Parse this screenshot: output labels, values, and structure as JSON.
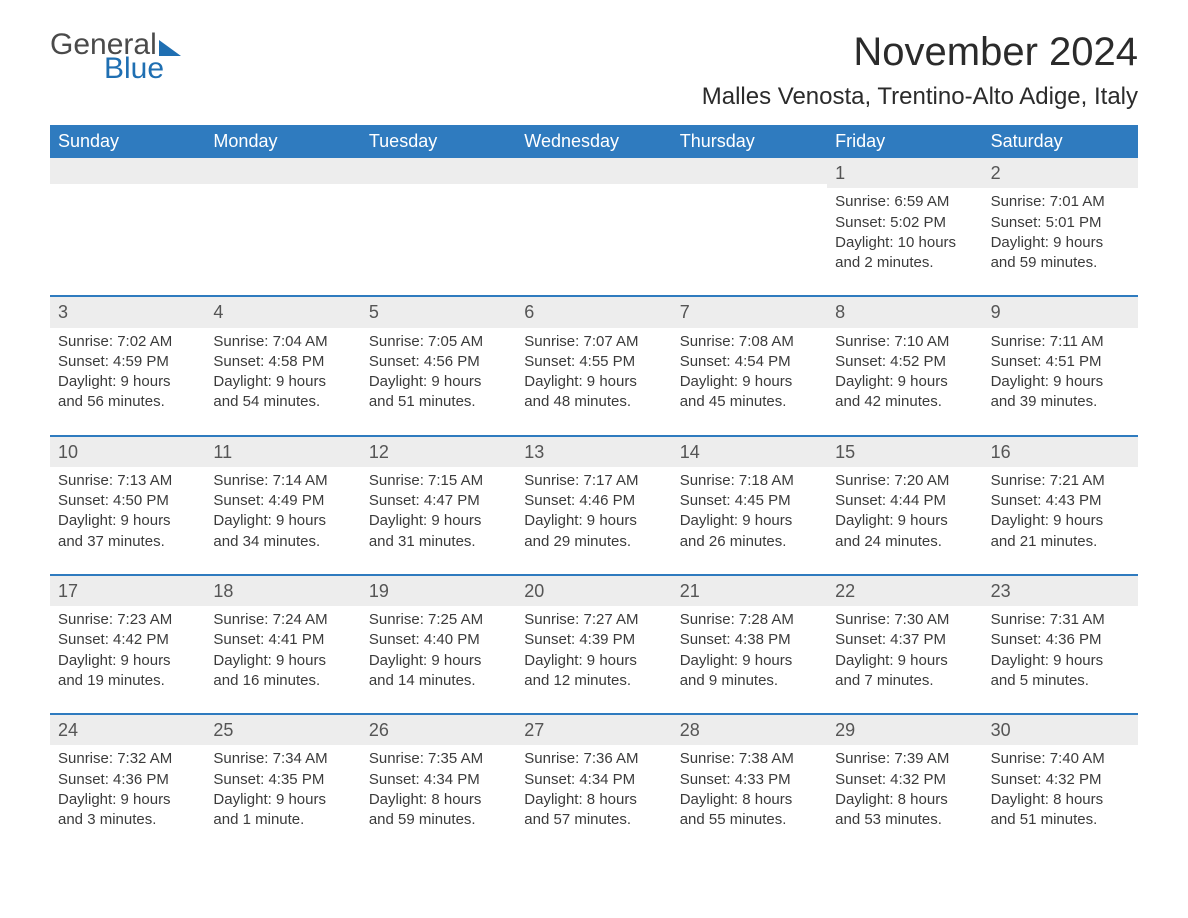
{
  "logo": {
    "text1": "General",
    "text2": "Blue"
  },
  "title": "November 2024",
  "location": "Malles Venosta, Trentino-Alto Adige, Italy",
  "colors": {
    "header_bg": "#2f7bbf",
    "header_text": "#ffffff",
    "daynum_bg": "#ededed",
    "week_border": "#2f7bbf",
    "body_text": "#3b3b3b",
    "logo_blue": "#1f6fb2",
    "background": "#ffffff"
  },
  "typography": {
    "title_fontsize": 40,
    "location_fontsize": 24,
    "dow_fontsize": 18,
    "daynum_fontsize": 18,
    "body_fontsize": 15
  },
  "days_of_week": [
    "Sunday",
    "Monday",
    "Tuesday",
    "Wednesday",
    "Thursday",
    "Friday",
    "Saturday"
  ],
  "weeks": [
    [
      {
        "n": "",
        "sunrise": "",
        "sunset": "",
        "daylight": ""
      },
      {
        "n": "",
        "sunrise": "",
        "sunset": "",
        "daylight": ""
      },
      {
        "n": "",
        "sunrise": "",
        "sunset": "",
        "daylight": ""
      },
      {
        "n": "",
        "sunrise": "",
        "sunset": "",
        "daylight": ""
      },
      {
        "n": "",
        "sunrise": "",
        "sunset": "",
        "daylight": ""
      },
      {
        "n": "1",
        "sunrise": "Sunrise: 6:59 AM",
        "sunset": "Sunset: 5:02 PM",
        "daylight": "Daylight: 10 hours and 2 minutes."
      },
      {
        "n": "2",
        "sunrise": "Sunrise: 7:01 AM",
        "sunset": "Sunset: 5:01 PM",
        "daylight": "Daylight: 9 hours and 59 minutes."
      }
    ],
    [
      {
        "n": "3",
        "sunrise": "Sunrise: 7:02 AM",
        "sunset": "Sunset: 4:59 PM",
        "daylight": "Daylight: 9 hours and 56 minutes."
      },
      {
        "n": "4",
        "sunrise": "Sunrise: 7:04 AM",
        "sunset": "Sunset: 4:58 PM",
        "daylight": "Daylight: 9 hours and 54 minutes."
      },
      {
        "n": "5",
        "sunrise": "Sunrise: 7:05 AM",
        "sunset": "Sunset: 4:56 PM",
        "daylight": "Daylight: 9 hours and 51 minutes."
      },
      {
        "n": "6",
        "sunrise": "Sunrise: 7:07 AM",
        "sunset": "Sunset: 4:55 PM",
        "daylight": "Daylight: 9 hours and 48 minutes."
      },
      {
        "n": "7",
        "sunrise": "Sunrise: 7:08 AM",
        "sunset": "Sunset: 4:54 PM",
        "daylight": "Daylight: 9 hours and 45 minutes."
      },
      {
        "n": "8",
        "sunrise": "Sunrise: 7:10 AM",
        "sunset": "Sunset: 4:52 PM",
        "daylight": "Daylight: 9 hours and 42 minutes."
      },
      {
        "n": "9",
        "sunrise": "Sunrise: 7:11 AM",
        "sunset": "Sunset: 4:51 PM",
        "daylight": "Daylight: 9 hours and 39 minutes."
      }
    ],
    [
      {
        "n": "10",
        "sunrise": "Sunrise: 7:13 AM",
        "sunset": "Sunset: 4:50 PM",
        "daylight": "Daylight: 9 hours and 37 minutes."
      },
      {
        "n": "11",
        "sunrise": "Sunrise: 7:14 AM",
        "sunset": "Sunset: 4:49 PM",
        "daylight": "Daylight: 9 hours and 34 minutes."
      },
      {
        "n": "12",
        "sunrise": "Sunrise: 7:15 AM",
        "sunset": "Sunset: 4:47 PM",
        "daylight": "Daylight: 9 hours and 31 minutes."
      },
      {
        "n": "13",
        "sunrise": "Sunrise: 7:17 AM",
        "sunset": "Sunset: 4:46 PM",
        "daylight": "Daylight: 9 hours and 29 minutes."
      },
      {
        "n": "14",
        "sunrise": "Sunrise: 7:18 AM",
        "sunset": "Sunset: 4:45 PM",
        "daylight": "Daylight: 9 hours and 26 minutes."
      },
      {
        "n": "15",
        "sunrise": "Sunrise: 7:20 AM",
        "sunset": "Sunset: 4:44 PM",
        "daylight": "Daylight: 9 hours and 24 minutes."
      },
      {
        "n": "16",
        "sunrise": "Sunrise: 7:21 AM",
        "sunset": "Sunset: 4:43 PM",
        "daylight": "Daylight: 9 hours and 21 minutes."
      }
    ],
    [
      {
        "n": "17",
        "sunrise": "Sunrise: 7:23 AM",
        "sunset": "Sunset: 4:42 PM",
        "daylight": "Daylight: 9 hours and 19 minutes."
      },
      {
        "n": "18",
        "sunrise": "Sunrise: 7:24 AM",
        "sunset": "Sunset: 4:41 PM",
        "daylight": "Daylight: 9 hours and 16 minutes."
      },
      {
        "n": "19",
        "sunrise": "Sunrise: 7:25 AM",
        "sunset": "Sunset: 4:40 PM",
        "daylight": "Daylight: 9 hours and 14 minutes."
      },
      {
        "n": "20",
        "sunrise": "Sunrise: 7:27 AM",
        "sunset": "Sunset: 4:39 PM",
        "daylight": "Daylight: 9 hours and 12 minutes."
      },
      {
        "n": "21",
        "sunrise": "Sunrise: 7:28 AM",
        "sunset": "Sunset: 4:38 PM",
        "daylight": "Daylight: 9 hours and 9 minutes."
      },
      {
        "n": "22",
        "sunrise": "Sunrise: 7:30 AM",
        "sunset": "Sunset: 4:37 PM",
        "daylight": "Daylight: 9 hours and 7 minutes."
      },
      {
        "n": "23",
        "sunrise": "Sunrise: 7:31 AM",
        "sunset": "Sunset: 4:36 PM",
        "daylight": "Daylight: 9 hours and 5 minutes."
      }
    ],
    [
      {
        "n": "24",
        "sunrise": "Sunrise: 7:32 AM",
        "sunset": "Sunset: 4:36 PM",
        "daylight": "Daylight: 9 hours and 3 minutes."
      },
      {
        "n": "25",
        "sunrise": "Sunrise: 7:34 AM",
        "sunset": "Sunset: 4:35 PM",
        "daylight": "Daylight: 9 hours and 1 minute."
      },
      {
        "n": "26",
        "sunrise": "Sunrise: 7:35 AM",
        "sunset": "Sunset: 4:34 PM",
        "daylight": "Daylight: 8 hours and 59 minutes."
      },
      {
        "n": "27",
        "sunrise": "Sunrise: 7:36 AM",
        "sunset": "Sunset: 4:34 PM",
        "daylight": "Daylight: 8 hours and 57 minutes."
      },
      {
        "n": "28",
        "sunrise": "Sunrise: 7:38 AM",
        "sunset": "Sunset: 4:33 PM",
        "daylight": "Daylight: 8 hours and 55 minutes."
      },
      {
        "n": "29",
        "sunrise": "Sunrise: 7:39 AM",
        "sunset": "Sunset: 4:32 PM",
        "daylight": "Daylight: 8 hours and 53 minutes."
      },
      {
        "n": "30",
        "sunrise": "Sunrise: 7:40 AM",
        "sunset": "Sunset: 4:32 PM",
        "daylight": "Daylight: 8 hours and 51 minutes."
      }
    ]
  ]
}
